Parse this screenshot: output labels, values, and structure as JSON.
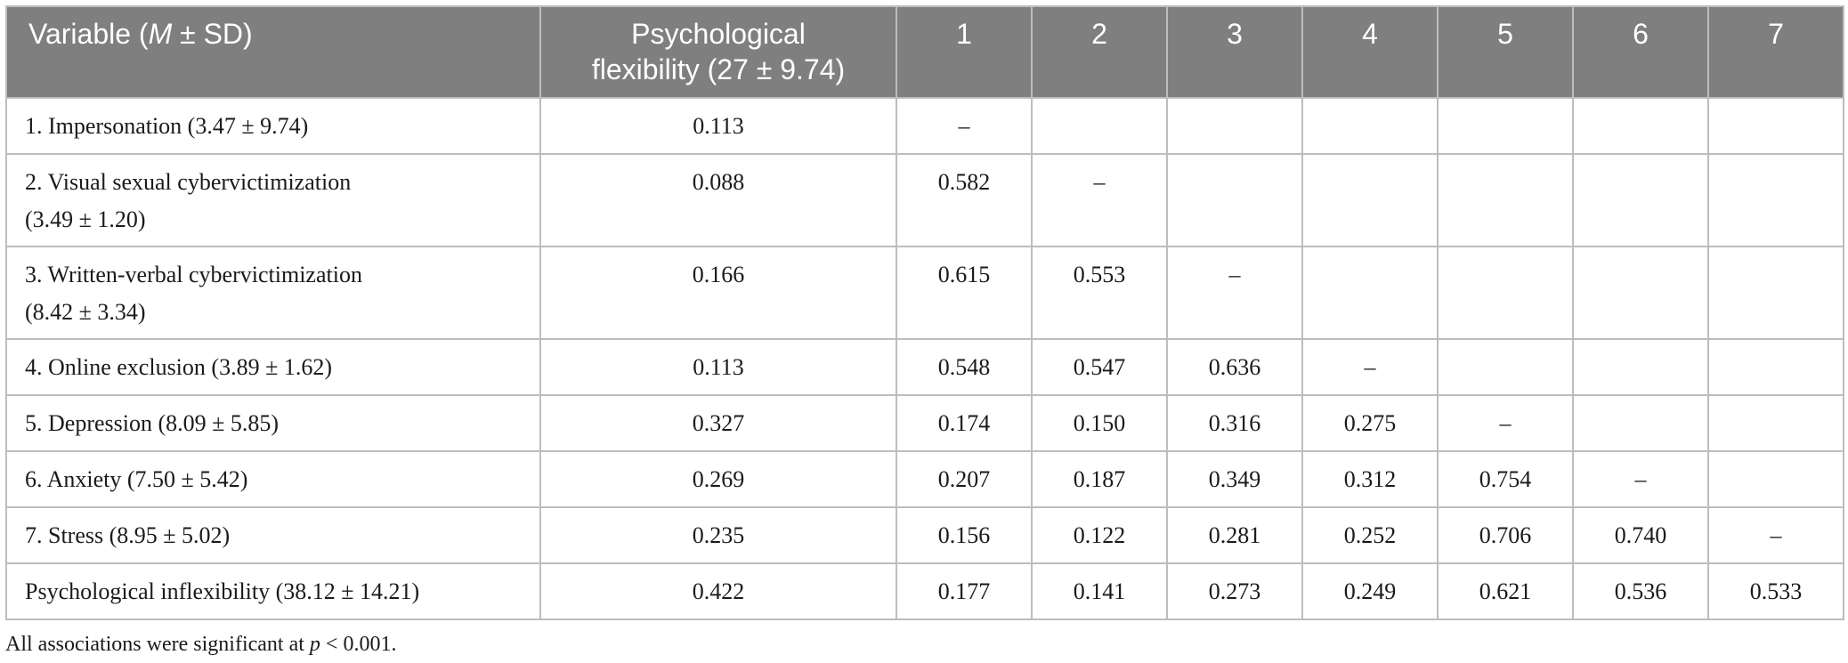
{
  "header": {
    "variable_prefix": "Variable (",
    "variable_m": "M",
    "variable_suffix": " ± SD)",
    "flex_line1": "Psychological",
    "flex_line2": "flexibility (27 ± 9.74)",
    "cols": [
      "1",
      "2",
      "3",
      "4",
      "5",
      "6",
      "7"
    ]
  },
  "rows": [
    {
      "label1": "1. Impersonation (3.47 ± 9.74)",
      "label2": "",
      "values": [
        "0.113",
        "–",
        "",
        "",
        "",
        "",
        "",
        ""
      ]
    },
    {
      "label1": "2. Visual sexual cybervictimization",
      "label2": "(3.49 ± 1.20)",
      "values": [
        "0.088",
        "0.582",
        "–",
        "",
        "",
        "",
        "",
        ""
      ]
    },
    {
      "label1": "3. Written-verbal cybervictimization",
      "label2": "(8.42 ± 3.34)",
      "values": [
        "0.166",
        "0.615",
        "0.553",
        "–",
        "",
        "",
        "",
        ""
      ]
    },
    {
      "label1": "4. Online exclusion (3.89 ± 1.62)",
      "label2": "",
      "values": [
        "0.113",
        "0.548",
        "0.547",
        "0.636",
        "–",
        "",
        "",
        ""
      ]
    },
    {
      "label1": "5. Depression (8.09 ± 5.85)",
      "label2": "",
      "values": [
        "0.327",
        "0.174",
        "0.150",
        "0.316",
        "0.275",
        "–",
        "",
        ""
      ]
    },
    {
      "label1": "6. Anxiety (7.50 ± 5.42)",
      "label2": "",
      "values": [
        "0.269",
        "0.207",
        "0.187",
        "0.349",
        "0.312",
        "0.754",
        "–",
        ""
      ]
    },
    {
      "label1": "7. Stress (8.95 ± 5.02)",
      "label2": "",
      "values": [
        "0.235",
        "0.156",
        "0.122",
        "0.281",
        "0.252",
        "0.706",
        "0.740",
        "–"
      ]
    },
    {
      "label1": "Psychological inflexibility (38.12 ± 14.21)",
      "label2": "",
      "values": [
        "0.422",
        "0.177",
        "0.141",
        "0.273",
        "0.249",
        "0.621",
        "0.536",
        "0.533"
      ]
    }
  ],
  "note": {
    "prefix": "All associations were significant at ",
    "p": "p",
    "suffix": " < 0.001."
  },
  "colors": {
    "header_bg": "#7f7f7f",
    "header_text": "#ffffff",
    "grid": "#bdbdbd"
  }
}
